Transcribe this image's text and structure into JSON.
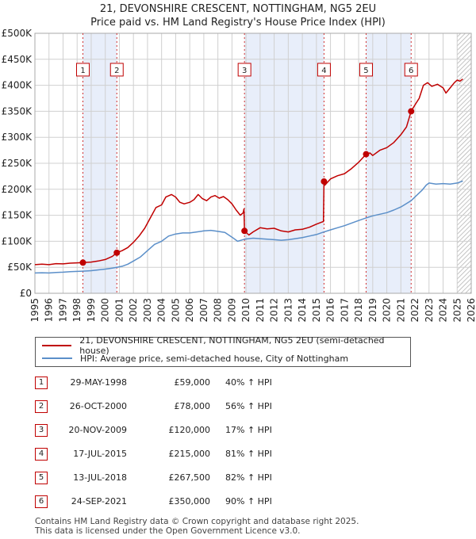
{
  "title_line1": "21, DEVONSHIRE CRESCENT, NOTTINGHAM, NG5 2EU",
  "title_line2": "Price paid vs. HM Land Registry's House Price Index (HPI)",
  "colors": {
    "property": "#c00000",
    "hpi": "#5b8fc9",
    "shade": "#e8eefa",
    "grid": "#d0d0d0"
  },
  "chart_data": {
    "type": "line",
    "xlim": [
      1995,
      2026
    ],
    "ylim": [
      0,
      500000
    ],
    "y_ticks": [
      0,
      50000,
      100000,
      150000,
      200000,
      250000,
      300000,
      350000,
      400000,
      450000,
      500000
    ],
    "y_tick_labels": [
      "£0",
      "£50K",
      "£100K",
      "£150K",
      "£200K",
      "£250K",
      "£300K",
      "£350K",
      "£400K",
      "£450K",
      "£500K"
    ],
    "x_tick_labels": [
      "1995",
      "1996",
      "1997",
      "1998",
      "1999",
      "2000",
      "2001",
      "2002",
      "2003",
      "2004",
      "2005",
      "2006",
      "2007",
      "2008",
      "2009",
      "2010",
      "2011",
      "2012",
      "2013",
      "2014",
      "2015",
      "2016",
      "2017",
      "2018",
      "2019",
      "2020",
      "2021",
      "2022",
      "2023",
      "2024",
      "2025",
      "2026"
    ],
    "shaded_bands": [
      [
        1998.41,
        2000.82
      ],
      [
        2009.89,
        2015.54
      ],
      [
        2018.53,
        2021.73
      ]
    ],
    "forecast_start": 2025.0,
    "series": [
      {
        "name": "21, DEVONSHIRE CRESCENT, NOTTINGHAM, NG5 2EU (semi-detached house)",
        "points": [
          [
            1995.0,
            55000
          ],
          [
            1995.5,
            56000
          ],
          [
            1996.0,
            55000
          ],
          [
            1996.5,
            57000
          ],
          [
            1997.0,
            56500
          ],
          [
            1997.5,
            58000
          ],
          [
            1998.0,
            58500
          ],
          [
            1998.41,
            59000
          ],
          [
            1999.0,
            60000
          ],
          [
            1999.5,
            62000
          ],
          [
            2000.0,
            65000
          ],
          [
            2000.5,
            71000
          ],
          [
            2000.82,
            78000
          ],
          [
            2001.2,
            82000
          ],
          [
            2001.6,
            88000
          ],
          [
            2002.0,
            98000
          ],
          [
            2002.4,
            110000
          ],
          [
            2002.8,
            125000
          ],
          [
            2003.2,
            145000
          ],
          [
            2003.6,
            165000
          ],
          [
            2004.0,
            170000
          ],
          [
            2004.3,
            185000
          ],
          [
            2004.7,
            190000
          ],
          [
            2005.0,
            185000
          ],
          [
            2005.3,
            175000
          ],
          [
            2005.6,
            172000
          ],
          [
            2006.0,
            175000
          ],
          [
            2006.3,
            180000
          ],
          [
            2006.6,
            190000
          ],
          [
            2006.9,
            182000
          ],
          [
            2007.2,
            178000
          ],
          [
            2007.5,
            185000
          ],
          [
            2007.8,
            188000
          ],
          [
            2008.1,
            183000
          ],
          [
            2008.4,
            186000
          ],
          [
            2008.7,
            180000
          ],
          [
            2009.0,
            172000
          ],
          [
            2009.3,
            160000
          ],
          [
            2009.6,
            150000
          ],
          [
            2009.8,
            155000
          ],
          [
            2009.85,
            162000
          ],
          [
            2009.89,
            120000
          ],
          [
            2010.2,
            112000
          ],
          [
            2010.5,
            118000
          ],
          [
            2011.0,
            126000
          ],
          [
            2011.5,
            124000
          ],
          [
            2012.0,
            125000
          ],
          [
            2012.5,
            120000
          ],
          [
            2013.0,
            118000
          ],
          [
            2013.5,
            122000
          ],
          [
            2014.0,
            123000
          ],
          [
            2014.5,
            127000
          ],
          [
            2015.0,
            133000
          ],
          [
            2015.4,
            137000
          ],
          [
            2015.5,
            138000
          ],
          [
            2015.54,
            215000
          ],
          [
            2015.6,
            208000
          ],
          [
            2016.0,
            220000
          ],
          [
            2016.5,
            226000
          ],
          [
            2017.0,
            230000
          ],
          [
            2017.5,
            240000
          ],
          [
            2018.0,
            252000
          ],
          [
            2018.53,
            267500
          ],
          [
            2018.8,
            270000
          ],
          [
            2019.0,
            265000
          ],
          [
            2019.5,
            275000
          ],
          [
            2020.0,
            280000
          ],
          [
            2020.5,
            290000
          ],
          [
            2021.0,
            305000
          ],
          [
            2021.4,
            320000
          ],
          [
            2021.73,
            350000
          ],
          [
            2022.0,
            362000
          ],
          [
            2022.3,
            375000
          ],
          [
            2022.6,
            400000
          ],
          [
            2022.9,
            405000
          ],
          [
            2023.2,
            398000
          ],
          [
            2023.6,
            402000
          ],
          [
            2024.0,
            395000
          ],
          [
            2024.2,
            385000
          ],
          [
            2024.5,
            395000
          ],
          [
            2024.8,
            405000
          ],
          [
            2025.0,
            410000
          ],
          [
            2025.2,
            408000
          ],
          [
            2025.4,
            412000
          ]
        ]
      },
      {
        "name": "HPI: Average price, semi-detached house, City of Nottingham",
        "points": [
          [
            1995.0,
            39000
          ],
          [
            1995.5,
            39500
          ],
          [
            1996.0,
            39000
          ],
          [
            1996.5,
            40000
          ],
          [
            1997.0,
            40500
          ],
          [
            1997.5,
            41500
          ],
          [
            1998.0,
            42000
          ],
          [
            1998.41,
            42500
          ],
          [
            1999.0,
            43500
          ],
          [
            1999.5,
            45000
          ],
          [
            2000.0,
            46500
          ],
          [
            2000.5,
            48500
          ],
          [
            2000.82,
            50000
          ],
          [
            2001.2,
            52000
          ],
          [
            2001.6,
            56000
          ],
          [
            2002.0,
            62000
          ],
          [
            2002.5,
            70000
          ],
          [
            2003.0,
            82000
          ],
          [
            2003.5,
            94000
          ],
          [
            2004.0,
            100000
          ],
          [
            2004.5,
            110000
          ],
          [
            2005.0,
            114000
          ],
          [
            2005.5,
            116000
          ],
          [
            2006.0,
            116000
          ],
          [
            2006.5,
            118000
          ],
          [
            2007.0,
            120000
          ],
          [
            2007.5,
            121000
          ],
          [
            2008.0,
            119000
          ],
          [
            2008.5,
            117000
          ],
          [
            2009.0,
            108000
          ],
          [
            2009.4,
            100000
          ],
          [
            2009.89,
            104000
          ],
          [
            2010.5,
            106000
          ],
          [
            2011.0,
            105000
          ],
          [
            2011.5,
            104000
          ],
          [
            2012.0,
            103000
          ],
          [
            2012.5,
            102000
          ],
          [
            2013.0,
            103000
          ],
          [
            2013.5,
            105000
          ],
          [
            2014.0,
            107000
          ],
          [
            2014.5,
            110000
          ],
          [
            2015.0,
            113000
          ],
          [
            2015.54,
            118000
          ],
          [
            2016.0,
            122000
          ],
          [
            2016.5,
            126000
          ],
          [
            2017.0,
            130000
          ],
          [
            2017.5,
            135000
          ],
          [
            2018.0,
            140000
          ],
          [
            2018.53,
            145000
          ],
          [
            2019.0,
            149000
          ],
          [
            2019.5,
            152000
          ],
          [
            2020.0,
            155000
          ],
          [
            2020.5,
            160000
          ],
          [
            2021.0,
            166000
          ],
          [
            2021.73,
            178000
          ],
          [
            2022.0,
            185000
          ],
          [
            2022.5,
            198000
          ],
          [
            2022.8,
            208000
          ],
          [
            2023.0,
            212000
          ],
          [
            2023.5,
            210000
          ],
          [
            2024.0,
            211000
          ],
          [
            2024.5,
            210000
          ],
          [
            2025.0,
            212000
          ],
          [
            2025.3,
            215000
          ],
          [
            2025.4,
            216000
          ]
        ]
      }
    ],
    "sales": [
      {
        "id": "1",
        "x": 1998.41,
        "y": 59000
      },
      {
        "id": "2",
        "x": 2000.82,
        "y": 78000
      },
      {
        "id": "3",
        "x": 2009.89,
        "y": 120000
      },
      {
        "id": "4",
        "x": 2015.54,
        "y": 215000
      },
      {
        "id": "5",
        "x": 2018.53,
        "y": 267500
      },
      {
        "id": "6",
        "x": 2021.73,
        "y": 350000
      }
    ],
    "marker_label_y": 430000
  },
  "legend": {
    "property": "21, DEVONSHIRE CRESCENT, NOTTINGHAM, NG5 2EU (semi-detached house)",
    "hpi": "HPI: Average price, semi-detached house, City of Nottingham"
  },
  "table": [
    {
      "num": "1",
      "date": "29-MAY-1998",
      "price": "£59,000",
      "hpi": "40% ↑ HPI"
    },
    {
      "num": "2",
      "date": "26-OCT-2000",
      "price": "£78,000",
      "hpi": "56% ↑ HPI"
    },
    {
      "num": "3",
      "date": "20-NOV-2009",
      "price": "£120,000",
      "hpi": "17% ↑ HPI"
    },
    {
      "num": "4",
      "date": "17-JUL-2015",
      "price": "£215,000",
      "hpi": "81% ↑ HPI"
    },
    {
      "num": "5",
      "date": "13-JUL-2018",
      "price": "£267,500",
      "hpi": "82% ↑ HPI"
    },
    {
      "num": "6",
      "date": "24-SEP-2021",
      "price": "£350,000",
      "hpi": "90% ↑ HPI"
    }
  ],
  "footer_line1": "Contains HM Land Registry data © Crown copyright and database right 2025.",
  "footer_line2": "This data is licensed under the Open Government Licence v3.0."
}
